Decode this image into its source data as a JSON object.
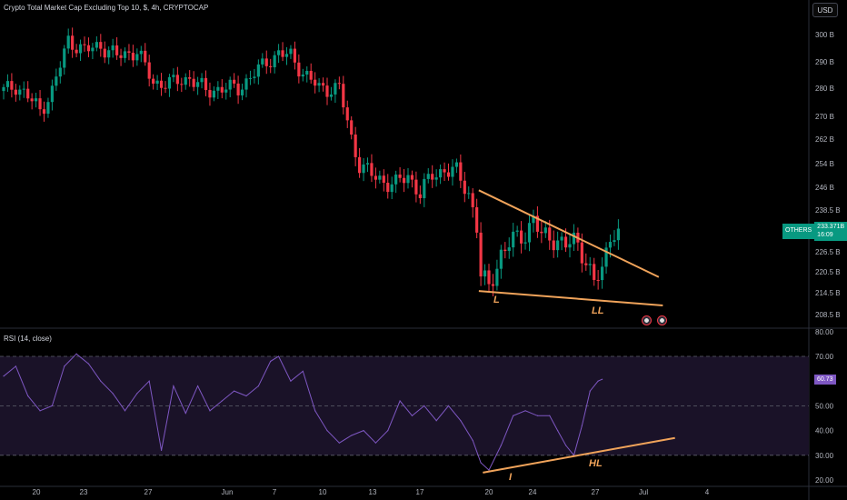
{
  "header": {
    "title": "Crypto Total Market Cap Excluding Top 10, $, 4h, CRYPTOCAP",
    "currency_button": "USD"
  },
  "price_badge": {
    "symbol": "OTHERS",
    "value": "233.371B",
    "countdown": "16:09"
  },
  "rsi_panel": {
    "label": "RSI (14, close)",
    "value_label": "60.73",
    "line_color": "#7e57c2",
    "band_color": "#1a1228"
  },
  "annotations": {
    "low1": "L",
    "low2": "LL",
    "rsi_low1": "I",
    "rsi_low2": "HL",
    "color": "#f0a35a"
  },
  "colors": {
    "up": "#089981",
    "down": "#f23645",
    "background": "#000000",
    "grid": "#2a2e39",
    "axis_text": "#b2b5be"
  },
  "chart_data": [
    {
      "type": "candlestick",
      "title": "Crypto Total Market Cap Excluding Top 10, $, 4h, CRYPTOCAP",
      "y_ticks": [
        "300 B",
        "290 B",
        "280 B",
        "270 B",
        "262 B",
        "254 B",
        "246 B",
        "238.5 B",
        "232.5 B",
        "226.5 B",
        "220.5 B",
        "214.5 B",
        "208.5 B"
      ],
      "y_tick_values": [
        300,
        290,
        280,
        270,
        262,
        254,
        246,
        238.5,
        232.5,
        226.5,
        220.5,
        214.5,
        208.5
      ],
      "x_ticks": [
        "20",
        "23",
        "27",
        "Jun",
        "7",
        "10",
        "13",
        "17",
        "20",
        "24",
        "27",
        "Jul",
        "4"
      ],
      "last_price": 233.371,
      "close_path": [
        [
          0,
          279
        ],
        [
          3,
          281
        ],
        [
          6,
          277
        ],
        [
          9,
          272
        ],
        [
          12,
          279
        ],
        [
          16,
          298
        ],
        [
          20,
          294
        ],
        [
          24,
          296
        ],
        [
          28,
          292
        ],
        [
          33,
          294
        ],
        [
          37,
          282
        ],
        [
          42,
          282
        ],
        [
          46,
          284
        ],
        [
          50,
          279
        ],
        [
          54,
          280
        ],
        [
          58,
          280
        ],
        [
          61,
          284
        ],
        [
          65,
          290
        ],
        [
          68,
          293
        ],
        [
          71,
          292
        ],
        [
          74,
          286
        ],
        [
          78,
          280
        ],
        [
          83,
          280
        ],
        [
          86,
          262
        ],
        [
          88,
          254
        ],
        [
          91,
          250
        ],
        [
          94,
          248
        ],
        [
          97,
          247
        ],
        [
          100,
          250
        ],
        [
          103,
          244
        ],
        [
          106,
          250
        ],
        [
          109,
          252
        ],
        [
          112,
          251
        ],
        [
          115,
          244
        ],
        [
          117,
          234
        ],
        [
          118,
          219
        ],
        [
          120,
          216
        ],
        [
          123,
          226
        ],
        [
          126,
          230
        ],
        [
          129,
          232
        ],
        [
          131,
          236
        ],
        [
          133,
          231
        ],
        [
          135,
          231
        ],
        [
          137,
          230
        ],
        [
          139,
          228
        ],
        [
          141,
          230
        ],
        [
          142,
          229
        ],
        [
          144,
          224
        ],
        [
          146,
          217
        ],
        [
          148,
          221
        ],
        [
          150,
          232
        ],
        [
          152,
          233.4
        ]
      ],
      "trendlines": [
        {
          "name": "descending resistance",
          "from": [
            117.5,
            245
          ],
          "to": [
            162,
            219
          ]
        },
        {
          "name": "support",
          "from": [
            117.5,
            215
          ],
          "to": [
            163,
            211
          ]
        }
      ]
    },
    {
      "type": "line",
      "title": "RSI (14, close)",
      "y_ticks": [
        "80.00",
        "70.00",
        "60.73",
        "50.00",
        "40.00",
        "30.00",
        "20.00"
      ],
      "y_tick_values": [
        80,
        70,
        50,
        40,
        30,
        20
      ],
      "bands": [
        30,
        50,
        70
      ],
      "last_value": 60.73,
      "values_path": [
        [
          0,
          62
        ],
        [
          3,
          66
        ],
        [
          6,
          54
        ],
        [
          9,
          48
        ],
        [
          12,
          50
        ],
        [
          15,
          66
        ],
        [
          18,
          71
        ],
        [
          21,
          67
        ],
        [
          24,
          60
        ],
        [
          27,
          55
        ],
        [
          30,
          48
        ],
        [
          33,
          55
        ],
        [
          36,
          60
        ],
        [
          39,
          32
        ],
        [
          42,
          58
        ],
        [
          45,
          47
        ],
        [
          48,
          58
        ],
        [
          51,
          48
        ],
        [
          54,
          52
        ],
        [
          57,
          56
        ],
        [
          60,
          54
        ],
        [
          63,
          58
        ],
        [
          66,
          68
        ],
        [
          68,
          70
        ],
        [
          71,
          60
        ],
        [
          74,
          64
        ],
        [
          77,
          48
        ],
        [
          80,
          40
        ],
        [
          83,
          35
        ],
        [
          86,
          38
        ],
        [
          89,
          40
        ],
        [
          92,
          35
        ],
        [
          95,
          40
        ],
        [
          98,
          52
        ],
        [
          101,
          46
        ],
        [
          104,
          50
        ],
        [
          107,
          44
        ],
        [
          110,
          50
        ],
        [
          113,
          44
        ],
        [
          116,
          36
        ],
        [
          118,
          27
        ],
        [
          120,
          24
        ],
        [
          123,
          34
        ],
        [
          126,
          46
        ],
        [
          129,
          48
        ],
        [
          132,
          46
        ],
        [
          135,
          46
        ],
        [
          137,
          40
        ],
        [
          139,
          34
        ],
        [
          141,
          30
        ],
        [
          143,
          42
        ],
        [
          145,
          56
        ],
        [
          147,
          60
        ],
        [
          148,
          60.73
        ]
      ],
      "trendlines": [
        {
          "name": "rising support",
          "from": [
            118.5,
            23
          ],
          "to": [
            166,
            37
          ]
        }
      ]
    }
  ]
}
